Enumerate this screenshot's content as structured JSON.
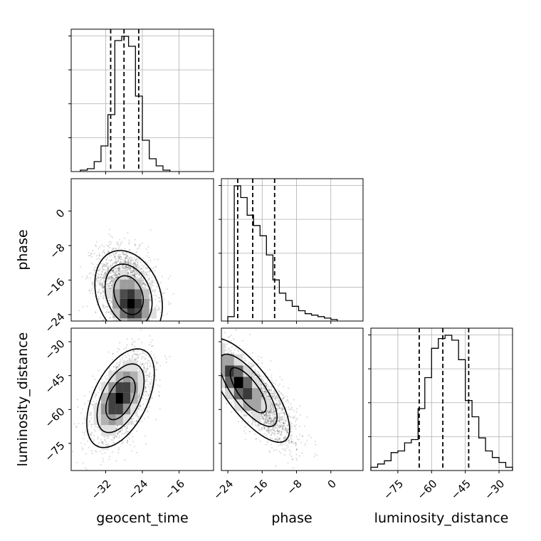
{
  "chart_data": {
    "type": "corner",
    "parameters": [
      "geocent_time",
      "phase",
      "luminosity_distance"
    ],
    "axes": {
      "geocent_time": {
        "range": [
          -39.5,
          -8.5
        ],
        "ticks": [
          -32,
          -24,
          -16
        ],
        "tick_labels": [
          "−32",
          "−24",
          "−16"
        ],
        "quantiles": [
          -30.9,
          -28.0,
          -24.8
        ]
      },
      "phase": {
        "range": [
          -25.5,
          7.5
        ],
        "ticks": [
          -24,
          -16,
          -8,
          0
        ],
        "tick_labels": [
          "−24",
          "−16",
          "−8",
          "0"
        ],
        "quantiles": [
          -21.7,
          -18.2,
          -13.1
        ]
      },
      "luminosity_distance": {
        "range": [
          -87,
          -24
        ],
        "ticks": [
          -75,
          -60,
          -45,
          -30
        ],
        "tick_labels": [
          "−75",
          "−60",
          "−45",
          "−30"
        ],
        "quantiles": [
          -65.5,
          -55.0,
          -43.5
        ]
      }
    },
    "marginals": {
      "geocent_time": {
        "bin_edges": [
          -37.5,
          -36,
          -34.5,
          -33,
          -31.5,
          -30,
          -28.5,
          -27,
          -25.5,
          -24,
          -22.5,
          -21,
          -19.5,
          -18
        ],
        "heights": [
          0.01,
          0.02,
          0.07,
          0.18,
          0.4,
          0.92,
          0.95,
          0.88,
          0.53,
          0.22,
          0.09,
          0.04,
          0.01
        ]
      },
      "phase": {
        "bin_edges": [
          -24,
          -22.5,
          -21,
          -19.5,
          -18,
          -16.5,
          -15,
          -13.5,
          -12,
          -10.5,
          -9,
          -7.5,
          -6,
          -4.5,
          -3,
          -1.5,
          0,
          1.5
        ],
        "heights": [
          0.03,
          0.92,
          0.84,
          0.72,
          0.65,
          0.58,
          0.45,
          0.28,
          0.19,
          0.14,
          0.1,
          0.07,
          0.05,
          0.04,
          0.03,
          0.02,
          0.01
        ]
      },
      "luminosity_distance": {
        "bin_edges": [
          -87,
          -84,
          -81,
          -78,
          -75,
          -72,
          -69,
          -66,
          -63,
          -60,
          -57,
          -54,
          -51,
          -48,
          -45,
          -42,
          -39,
          -36,
          -33,
          -30,
          -27,
          -24
        ],
        "heights": [
          0.02,
          0.04,
          0.06,
          0.11,
          0.12,
          0.17,
          0.19,
          0.38,
          0.57,
          0.75,
          0.81,
          0.83,
          0.8,
          0.68,
          0.43,
          0.33,
          0.2,
          0.12,
          0.08,
          0.05,
          0.02
        ]
      }
    },
    "joint": [
      {
        "x": "geocent_time",
        "y": "phase",
        "center": [
          -27.5,
          -17.5
        ],
        "sd": [
          3.2,
          4.5
        ],
        "rho": -0.25,
        "mode": [
          -26.5,
          -21.5
        ]
      },
      {
        "x": "geocent_time",
        "y": "luminosity_distance",
        "center": [
          -28.5,
          -55
        ],
        "sd": [
          3.2,
          9.5
        ],
        "rho": 0.5,
        "mode": [
          -29,
          -55
        ]
      },
      {
        "x": "phase",
        "y": "luminosity_distance",
        "center": [
          -17,
          -55
        ],
        "sd": [
          4.2,
          10
        ],
        "rho": -0.75,
        "mode": [
          -21.5,
          -48
        ]
      }
    ],
    "grid": true
  }
}
